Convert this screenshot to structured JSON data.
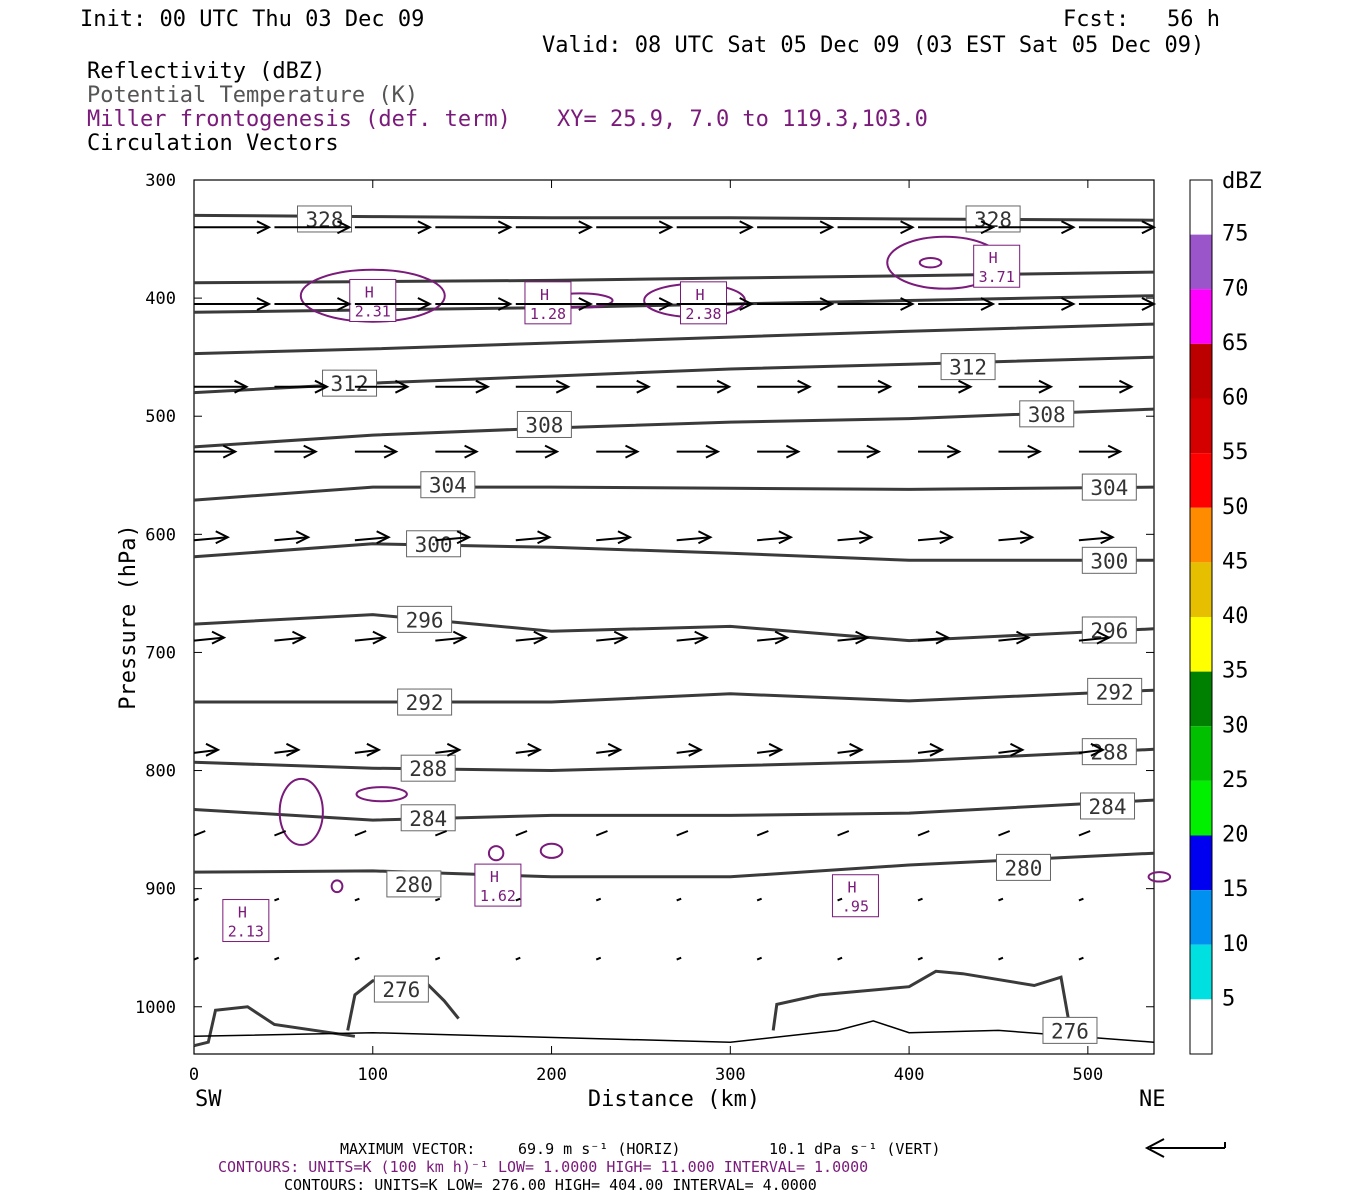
{
  "header": {
    "init": "Init: 00 UTC Thu 03 Dec 09",
    "fcst_label": "Fcst:",
    "fcst_value": "56 h",
    "valid": "Valid: 08 UTC Sat 05 Dec 09 (03 EST Sat 05 Dec 09)",
    "field1": "Reflectivity (dBZ)",
    "field2": "Potential Temperature (K)",
    "field3": "Miller frontogenesis (def. term)",
    "xy": "XY=  25.9,  7.0 to 119.3,103.0",
    "field4": "Circulation Vectors"
  },
  "footer": {
    "max_vector_label": "MAXIMUM VECTOR:",
    "max_vector_horiz": "69.9 m s⁻¹ (HORIZ)",
    "max_vector_vert": "10.1 dPa s⁻¹ (VERT)",
    "contours_frontogenesis": "CONTOURS:  UNITS=K (100 km h)⁻¹  LOW=  1.0000       HIGH=  11.000       INTERVAL=   1.0000",
    "contours_theta": "CONTOURS:  UNITS=K  LOW=  276.00        HIGH=  404.00        INTERVAL=    4.0000"
  },
  "colors": {
    "theta": "#3a3a3a",
    "frontogenesis": "#7a1a7a",
    "vectors": "#000000",
    "field2_text": "#555555"
  },
  "chart_data": {
    "type": "cross-section",
    "xlabel": "Distance (km)",
    "ylabel": "Pressure (hPa)",
    "x_left_label": "SW",
    "x_right_label": "NE",
    "xlim": [
      0,
      537
    ],
    "ylim": [
      1040,
      300
    ],
    "x_ticks": [
      0,
      100,
      200,
      300,
      400,
      500
    ],
    "y_ticks": [
      300,
      400,
      500,
      600,
      700,
      800,
      900,
      1000
    ],
    "colorbar": {
      "unit": "dBZ",
      "levels": [
        5,
        10,
        15,
        20,
        25,
        30,
        35,
        40,
        45,
        50,
        55,
        60,
        65,
        70,
        75
      ],
      "colors": [
        "#ffffff",
        "#00e0e0",
        "#0090f0",
        "#0000f0",
        "#00f000",
        "#00c000",
        "#008000",
        "#ffff00",
        "#e6c000",
        "#ff8c00",
        "#ff0000",
        "#d40000",
        "#bc0000",
        "#ff00ff",
        "#9955c9",
        "#ffffff"
      ]
    },
    "theta_contours": [
      {
        "value": 328,
        "label_x": 73,
        "label_p": 333,
        "points": [
          [
            0,
            330
          ],
          [
            100,
            331
          ],
          [
            200,
            332
          ],
          [
            300,
            332
          ],
          [
            400,
            333
          ],
          [
            537,
            334
          ]
        ]
      },
      {
        "value": 328,
        "label_x": 447,
        "label_p": 333,
        "points": []
      },
      {
        "value": 324,
        "points": [
          [
            0,
            387
          ],
          [
            100,
            386
          ],
          [
            200,
            385
          ],
          [
            300,
            383
          ],
          [
            400,
            381
          ],
          [
            537,
            378
          ]
        ]
      },
      {
        "value": 320,
        "points": [
          [
            0,
            412
          ],
          [
            100,
            410
          ],
          [
            200,
            408
          ],
          [
            300,
            405
          ],
          [
            400,
            402
          ],
          [
            537,
            398
          ]
        ]
      },
      {
        "value": 316,
        "points": [
          [
            0,
            447
          ],
          [
            100,
            443
          ],
          [
            200,
            438
          ],
          [
            300,
            433
          ],
          [
            400,
            428
          ],
          [
            537,
            422
          ]
        ]
      },
      {
        "value": 312,
        "label_x": 87,
        "label_p": 472,
        "points": [
          [
            0,
            480
          ],
          [
            100,
            472
          ],
          [
            200,
            466
          ],
          [
            300,
            460
          ],
          [
            400,
            456
          ],
          [
            537,
            450
          ]
        ]
      },
      {
        "value": 312,
        "label_x": 433,
        "label_p": 458,
        "points": []
      },
      {
        "value": 308,
        "label_x": 196,
        "label_p": 507,
        "points": [
          [
            0,
            526
          ],
          [
            100,
            516
          ],
          [
            200,
            510
          ],
          [
            300,
            505
          ],
          [
            400,
            502
          ],
          [
            537,
            494
          ]
        ]
      },
      {
        "value": 308,
        "label_x": 477,
        "label_p": 498,
        "points": []
      },
      {
        "value": 304,
        "label_x": 142,
        "label_p": 558,
        "points": [
          [
            0,
            571
          ],
          [
            100,
            560
          ],
          [
            200,
            560
          ],
          [
            300,
            561
          ],
          [
            400,
            562
          ],
          [
            537,
            560
          ]
        ]
      },
      {
        "value": 304,
        "label_x": 512,
        "label_p": 560,
        "points": []
      },
      {
        "value": 300,
        "label_x": 134,
        "label_p": 608,
        "points": [
          [
            0,
            619
          ],
          [
            100,
            608
          ],
          [
            200,
            611
          ],
          [
            300,
            616
          ],
          [
            400,
            622
          ],
          [
            537,
            622
          ]
        ]
      },
      {
        "value": 300,
        "label_x": 512,
        "label_p": 622,
        "points": []
      },
      {
        "value": 296,
        "label_x": 129,
        "label_p": 672,
        "points": [
          [
            0,
            676
          ],
          [
            100,
            668
          ],
          [
            200,
            682
          ],
          [
            300,
            678
          ],
          [
            400,
            690
          ],
          [
            537,
            680
          ]
        ]
      },
      {
        "value": 296,
        "label_x": 512,
        "label_p": 681,
        "points": []
      },
      {
        "value": 292,
        "label_x": 129,
        "label_p": 742,
        "points": [
          [
            0,
            742
          ],
          [
            100,
            742
          ],
          [
            200,
            742
          ],
          [
            300,
            735
          ],
          [
            400,
            741
          ],
          [
            537,
            732
          ]
        ]
      },
      {
        "value": 292,
        "label_x": 515,
        "label_p": 733,
        "points": []
      },
      {
        "value": 288,
        "label_x": 131,
        "label_p": 798,
        "points": [
          [
            0,
            793
          ],
          [
            100,
            798
          ],
          [
            200,
            800
          ],
          [
            300,
            796
          ],
          [
            400,
            792
          ],
          [
            537,
            782
          ]
        ]
      },
      {
        "value": 288,
        "label_x": 512,
        "label_p": 784,
        "points": []
      },
      {
        "value": 284,
        "label_x": 131,
        "label_p": 840,
        "points": [
          [
            0,
            833
          ],
          [
            100,
            842
          ],
          [
            200,
            838
          ],
          [
            300,
            838
          ],
          [
            400,
            836
          ],
          [
            537,
            825
          ]
        ]
      },
      {
        "value": 284,
        "label_x": 511,
        "label_p": 830,
        "points": []
      },
      {
        "value": 280,
        "label_x": 123,
        "label_p": 896,
        "points": [
          [
            0,
            886
          ],
          [
            100,
            885
          ],
          [
            200,
            890
          ],
          [
            300,
            890
          ],
          [
            400,
            880
          ],
          [
            537,
            870
          ]
        ]
      },
      {
        "value": 280,
        "label_x": 464,
        "label_p": 882,
        "points": []
      },
      {
        "value": 276,
        "label_x": 116,
        "label_p": 985,
        "points": []
      },
      {
        "value": 276,
        "label_x": 490,
        "label_p": 1020,
        "points": []
      }
    ],
    "frontogenesis_maxima": [
      {
        "label": "H",
        "value": "2.31",
        "x": 100,
        "p": 402
      },
      {
        "label": "H",
        "value": "1.28",
        "x": 198,
        "p": 404
      },
      {
        "label": "H",
        "value": "2.38",
        "x": 285,
        "p": 404
      },
      {
        "label": "H",
        "value": "3.71",
        "x": 449,
        "p": 373
      },
      {
        "label": "H",
        "value": "1.62",
        "x": 170,
        "p": 897
      },
      {
        "label": "H",
        "value": "2.13",
        "x": 29,
        "p": 927
      },
      {
        "label": "H",
        "value": ".95",
        "x": 370,
        "p": 906
      }
    ],
    "max_vector_horiz_m_s": 69.9,
    "max_vector_vert_dPa_s": 10.1
  }
}
